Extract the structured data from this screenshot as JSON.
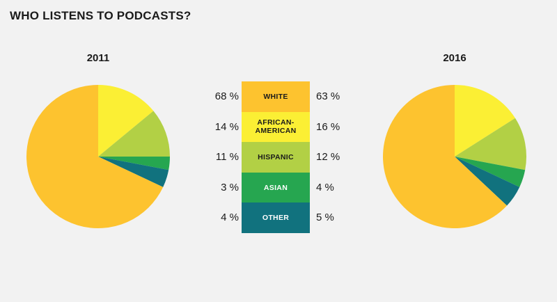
{
  "chart_data": {
    "type": "pie",
    "title": "WHO LISTENS TO PODCASTS?",
    "categories": [
      "WHITE",
      "AFRICAN-AMERICAN",
      "HISPANIC",
      "ASIAN",
      "OTHER"
    ],
    "colors": [
      "#fdc32f",
      "#fbef34",
      "#b2d045",
      "#26a650",
      "#11727e"
    ],
    "series": [
      {
        "name": "2011",
        "values": [
          68,
          14,
          11,
          3,
          4
        ],
        "labels": [
          "68 %",
          "14 %",
          "11 %",
          "3 %",
          "4 %"
        ]
      },
      {
        "name": "2016",
        "values": [
          63,
          16,
          12,
          4,
          5
        ],
        "labels": [
          "63 %",
          "16 %",
          "12 %",
          "4 %",
          "5 %"
        ]
      }
    ],
    "label_colors": [
      "#1a1a1a",
      "#1a1a1a",
      "#1a1a1a",
      "#ffffff",
      "#ffffff"
    ]
  }
}
